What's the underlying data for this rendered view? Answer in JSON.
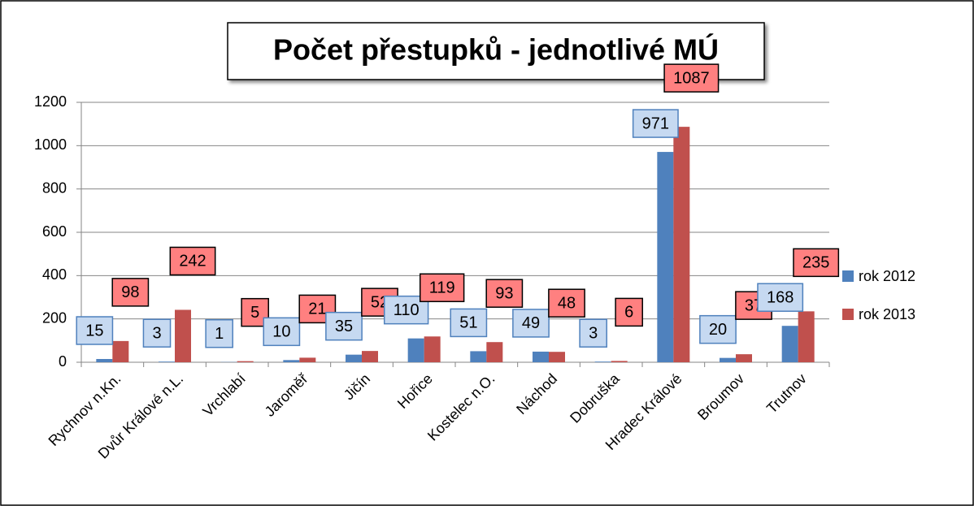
{
  "chart_data": {
    "type": "bar",
    "title": "Počet přestupků - jednotlivé MÚ",
    "categories": [
      "Rychnov n.Kn.",
      "Dvůr Králové n.L.",
      "Vrchlabí",
      "Jaroměř",
      "Jičín",
      "Hořice",
      "Kostelec n.O.",
      "Náchod",
      "Dobruška",
      "Hradec Králové",
      "Broumov",
      "Trutnov"
    ],
    "series": [
      {
        "name": "rok 2012",
        "color": "#4f81bd",
        "values": [
          15,
          3,
          1,
          10,
          35,
          110,
          51,
          49,
          3,
          971,
          20,
          168
        ]
      },
      {
        "name": "rok 2013",
        "color": "#c0504d",
        "values": [
          98,
          242,
          5,
          21,
          52,
          119,
          93,
          48,
          6,
          1087,
          37,
          235
        ]
      }
    ],
    "ylim": [
      0,
      1200
    ],
    "yticks": [
      0,
      200,
      400,
      600,
      800,
      1000,
      1200
    ],
    "grid": true,
    "legend": "right"
  }
}
